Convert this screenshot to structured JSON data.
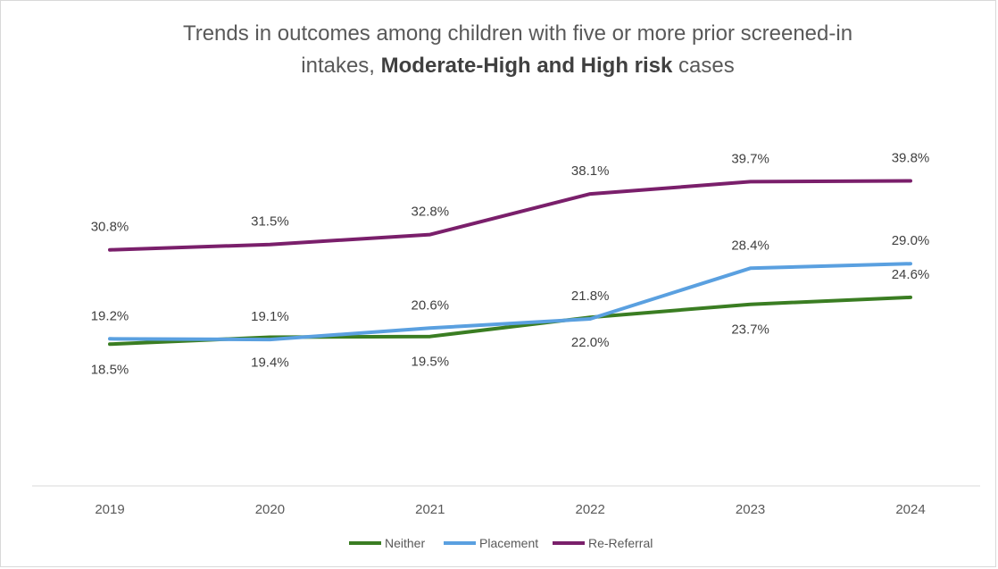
{
  "chart_data": {
    "type": "line",
    "title": {
      "line1": "Trends in outcomes among children with five or more prior screened-in",
      "line2_pre": "intakes, ",
      "line2_bold": "Moderate-High and High risk",
      "line2_post": " cases"
    },
    "categories": [
      "2019",
      "2020",
      "2021",
      "2022",
      "2023",
      "2024"
    ],
    "ylim": [
      0,
      50
    ],
    "grid": false,
    "legend_position": "bottom",
    "series": [
      {
        "name": "Neither",
        "color": "#3a7d22",
        "values": [
          18.5,
          19.4,
          19.5,
          22.0,
          23.7,
          24.6
        ],
        "labels": [
          "18.5%",
          "19.4%",
          "19.5%",
          "22.0%",
          "23.7%",
          "24.6%"
        ],
        "label_pos": [
          "below",
          "below",
          "below",
          "below",
          "below",
          "above"
        ]
      },
      {
        "name": "Placement",
        "color": "#5aa0e0",
        "values": [
          19.2,
          19.1,
          20.6,
          21.8,
          28.4,
          29.0
        ],
        "labels": [
          "19.2%",
          "19.1%",
          "20.6%",
          "21.8%",
          "28.4%",
          "29.0%"
        ],
        "label_pos": [
          "above",
          "above",
          "above",
          "above",
          "above",
          "above"
        ]
      },
      {
        "name": "Re-Referral",
        "color": "#7a1f6b",
        "values": [
          30.8,
          31.5,
          32.8,
          38.1,
          39.7,
          39.8
        ],
        "labels": [
          "30.8%",
          "31.5%",
          "32.8%",
          "38.1%",
          "39.7%",
          "39.8%"
        ],
        "label_pos": [
          "above",
          "above",
          "above",
          "above",
          "above",
          "above"
        ]
      }
    ]
  }
}
